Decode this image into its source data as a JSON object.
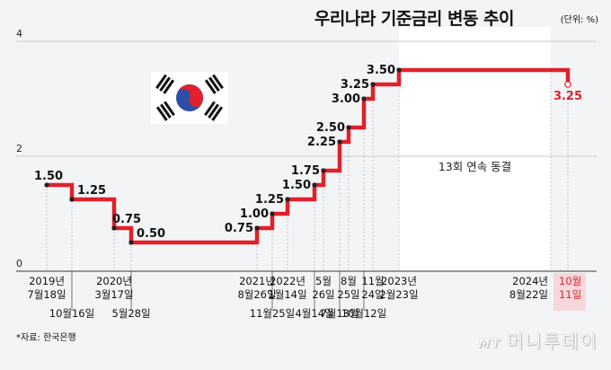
{
  "header": {
    "title": "우리나라 기준금리 변동 추이",
    "unit": "(단위: %)"
  },
  "footer": {
    "source": "*자료: 한국은행",
    "logo_mt": "MT",
    "logo_text": "머니투데이"
  },
  "annotation": {
    "freeze_text": "13회 연속 동결"
  },
  "colors": {
    "line": "#e0202a",
    "highlight_text": "#d9232d",
    "highlight_bg": "#f7d8da",
    "freeze_bg": "#ffffff",
    "grid": "#c8cbd0"
  },
  "chart_data": {
    "type": "line",
    "step": true,
    "title": "우리나라 기준금리 변동 추이",
    "unit": "%",
    "ylim": [
      0,
      4
    ],
    "yticks": [
      0,
      2,
      4
    ],
    "grid": true,
    "points": [
      {
        "date_top": "2019년",
        "date_bottom": "7월18일",
        "row": 1,
        "value": 1.5,
        "label": "1.50"
      },
      {
        "date_top": "",
        "date_bottom": "10월16일",
        "row": 2,
        "value": 1.25,
        "label": "1.25"
      },
      {
        "date_top": "2020년",
        "date_bottom": "3월17일",
        "row": 1,
        "value": 0.75,
        "label": "0.75"
      },
      {
        "date_top": "",
        "date_bottom": "5월28일",
        "row": 2,
        "value": 0.5,
        "label": "0.50"
      },
      {
        "date_top": "2021년",
        "date_bottom": "8월26일",
        "row": 1,
        "value": 0.75,
        "label": "0.75"
      },
      {
        "date_top": "",
        "date_bottom": "11월25일",
        "row": 2,
        "value": 1.0,
        "label": "1.00"
      },
      {
        "date_top": "2022년",
        "date_bottom": "1월14일",
        "row": 1,
        "value": 1.25,
        "label": "1.25"
      },
      {
        "date_top": "",
        "date_bottom": "4월14일",
        "row": 2,
        "value": 1.5,
        "label": "1.50"
      },
      {
        "date_top": "5월",
        "date_bottom": "26일",
        "row": 1,
        "value": 1.75,
        "label": "1.75"
      },
      {
        "date_top": "",
        "date_bottom": "7월13일",
        "row": 2,
        "value": 2.25,
        "label": "2.25"
      },
      {
        "date_top": "8월",
        "date_bottom": "25일",
        "row": 1,
        "value": 2.5,
        "label": "2.50"
      },
      {
        "date_top": "",
        "date_bottom": "10월12일",
        "row": 2,
        "value": 3.0,
        "label": "3.00"
      },
      {
        "date_top": "11월",
        "date_bottom": "24일",
        "row": 1,
        "value": 3.25,
        "label": "3.25"
      },
      {
        "date_top": "2023년",
        "date_bottom": "2월23일",
        "row": 1,
        "value": 3.5,
        "label": "3.50"
      },
      {
        "date_top": "2024년",
        "date_bottom": "8월22일",
        "row": 1,
        "value": 3.5,
        "label": ""
      },
      {
        "date_top": "10월",
        "date_bottom": "11일",
        "row": 1,
        "value": 3.25,
        "label": "3.25",
        "highlight": true
      }
    ]
  }
}
